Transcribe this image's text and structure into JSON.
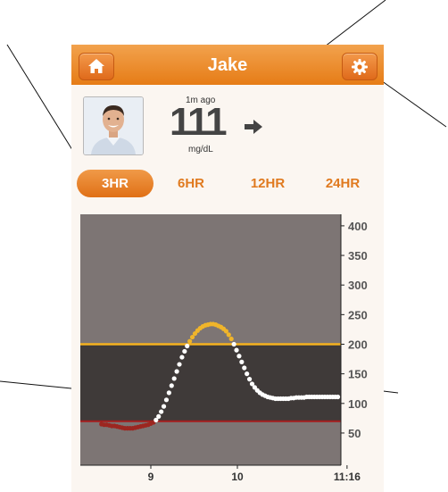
{
  "user": {
    "name": "Jake"
  },
  "reading": {
    "value": "111",
    "time_ago": "1m ago",
    "units": "mg/dL"
  },
  "ranges": [
    "3HR",
    "6HR",
    "12HR",
    "24HR"
  ],
  "selected_range": "3HR",
  "icons": {
    "home": "home-icon",
    "settings": "gear-icon",
    "trend": "arrow-right-icon"
  },
  "colors": {
    "accent": "#e8842a",
    "high_line": "#f5b21f",
    "low_line": "#a31c1c",
    "in_range_dot": "#ffffff",
    "high_dot": "#f0b52a",
    "low_dot": "#9c2620"
  },
  "chart_data": {
    "type": "scatter",
    "high_threshold": 200,
    "low_threshold": 70,
    "ylim": [
      0,
      420
    ],
    "y_ticks": [
      "400",
      "350",
      "300",
      "250",
      "200",
      "150",
      "100",
      "50"
    ],
    "x_ticks": [
      "9",
      "10",
      "11:16"
    ],
    "x_values": [
      8.43,
      8.46,
      8.49,
      8.52,
      8.55,
      8.58,
      8.61,
      8.64,
      8.67,
      8.7,
      8.73,
      8.76,
      8.79,
      8.82,
      8.85,
      8.88,
      8.91,
      8.94,
      8.97,
      9.0,
      9.03,
      9.06,
      9.09,
      9.12,
      9.15,
      9.18,
      9.21,
      9.24,
      9.27,
      9.3,
      9.33,
      9.36,
      9.39,
      9.42,
      9.45,
      9.48,
      9.51,
      9.54,
      9.57,
      9.6,
      9.63,
      9.66,
      9.69,
      9.72,
      9.75,
      9.78,
      9.81,
      9.84,
      9.87,
      9.9,
      9.93,
      9.96,
      9.99,
      10.02,
      10.05,
      10.08,
      10.11,
      10.14,
      10.17,
      10.2,
      10.23,
      10.26,
      10.29,
      10.32,
      10.35,
      10.38,
      10.41,
      10.44,
      10.47,
      10.5,
      10.53,
      10.56,
      10.59,
      10.62,
      10.65,
      10.68,
      10.71,
      10.74,
      10.77,
      10.8,
      10.83,
      10.86,
      10.89,
      10.92,
      10.95,
      10.98,
      11.01,
      11.04,
      11.07,
      11.1,
      11.13,
      11.16
    ],
    "y_values": [
      65,
      64,
      64,
      63,
      62,
      62,
      61,
      60,
      59,
      58,
      58,
      58,
      58,
      59,
      60,
      61,
      62,
      63,
      64,
      66,
      68,
      72,
      78,
      86,
      95,
      106,
      118,
      130,
      142,
      154,
      166,
      178,
      188,
      197,
      205,
      212,
      218,
      223,
      227,
      230,
      232,
      233,
      234,
      234,
      233,
      231,
      229,
      226,
      222,
      216,
      209,
      200,
      190,
      180,
      170,
      160,
      150,
      141,
      133,
      127,
      122,
      118,
      115,
      113,
      111,
      110,
      109,
      108,
      108,
      108,
      108,
      108,
      108,
      109,
      109,
      110,
      110,
      110,
      110,
      111,
      111,
      111,
      111,
      111,
      111,
      111,
      111,
      111,
      111,
      111,
      111,
      111
    ]
  }
}
